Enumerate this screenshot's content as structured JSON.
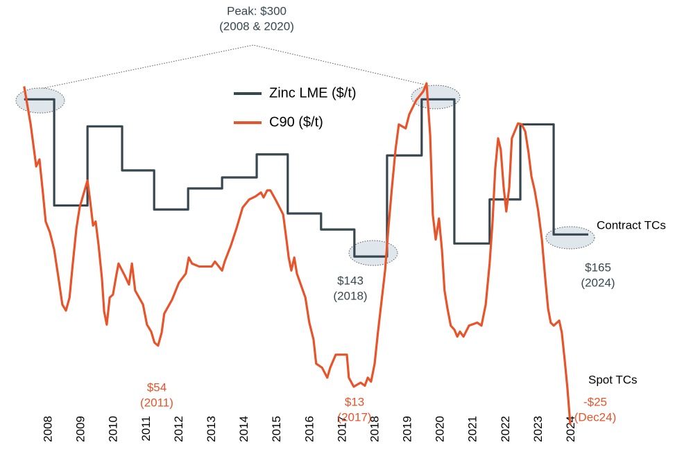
{
  "chart_data": {
    "type": "line",
    "xlim": [
      2007,
      2027.6
    ],
    "ylim": [
      -30,
      330
    ],
    "xticks": [
      2008,
      2009,
      2010,
      2011,
      2012,
      2013,
      2014,
      2015,
      2016,
      2017,
      2018,
      2019,
      2020,
      2021,
      2022,
      2023,
      2024
    ],
    "legend": "upper center",
    "series": [
      {
        "name": "Zinc LME ($/t)",
        "color": "#37474f",
        "step": "post",
        "x": [
          2007.25,
          2008.17,
          2009.19,
          2010.25,
          2011.23,
          2012.27,
          2013.31,
          2014.37,
          2015.32,
          2016.34,
          2017.36,
          2018.36,
          2019.42,
          2020.42,
          2021.5,
          2022.44,
          2023.46,
          2024.52
        ],
        "values": [
          300,
          194,
          273,
          229,
          190,
          211,
          222,
          245,
          186,
          170,
          143,
          244,
          300,
          156,
          200,
          275,
          165,
          165
        ]
      },
      {
        "name": "C90 ($/t)",
        "color": "#e8532a",
        "x": [
          2007.25,
          2007.45,
          2007.62,
          2007.72,
          2007.83,
          2007.91,
          2008.04,
          2008.17,
          2008.3,
          2008.42,
          2008.53,
          2008.64,
          2008.74,
          2008.85,
          2008.95,
          2009.19,
          2009.27,
          2009.36,
          2009.44,
          2009.53,
          2009.63,
          2009.7,
          2009.78,
          2009.87,
          2009.97,
          2010.06,
          2010.14,
          2010.33,
          2010.46,
          2010.55,
          2010.65,
          2010.89,
          2011.01,
          2011.14,
          2011.24,
          2011.35,
          2011.46,
          2011.54,
          2011.78,
          2011.99,
          2012.2,
          2012.29,
          2012.39,
          2012.61,
          2012.99,
          2013.09,
          2013.31,
          2013.39,
          2013.58,
          2013.75,
          2013.94,
          2014.14,
          2014.33,
          2014.5,
          2014.58,
          2014.69,
          2014.79,
          2014.96,
          2015.18,
          2015.28,
          2015.35,
          2015.43,
          2015.52,
          2015.6,
          2015.86,
          2015.98,
          2016.11,
          2016.19,
          2016.37,
          2016.53,
          2016.62,
          2016.79,
          2017.13,
          2017.19,
          2017.34,
          2017.55,
          2017.68,
          2017.77,
          2017.87,
          2017.98,
          2018.08,
          2018.19,
          2018.3,
          2018.4,
          2018.51,
          2018.62,
          2018.72,
          2018.93,
          2019.04,
          2019.25,
          2019.47,
          2019.57,
          2019.68,
          2019.76,
          2019.85,
          2019.95,
          2020.04,
          2020.12,
          2020.21,
          2020.31,
          2020.42,
          2020.51,
          2020.59,
          2020.7,
          2020.87,
          2021.12,
          2021.25,
          2021.38,
          2021.5,
          2021.59,
          2021.67,
          2021.76,
          2021.84,
          2021.93,
          2022.01,
          2022.1,
          2022.18,
          2022.37,
          2022.48,
          2022.59,
          2022.69,
          2022.78,
          2022.88,
          2022.99,
          2023.1,
          2023.2,
          2023.29,
          2023.37,
          2023.46,
          2023.63,
          2023.71,
          2023.8,
          2023.88,
          2023.97
        ],
        "values": [
          313,
          275,
          233,
          240,
          205,
          178,
          167,
          150,
          122,
          95,
          89,
          102,
          136,
          171,
          192,
          219,
          199,
          174,
          178,
          154,
          122,
          88,
          75,
          102,
          105,
          122,
          136,
          124,
          115,
          136,
          109,
          95,
          75,
          68,
          57,
          54,
          67,
          86,
          100,
          117,
          126,
          142,
          136,
          133,
          133,
          138,
          129,
          138,
          154,
          171,
          192,
          200,
          203,
          207,
          202,
          209,
          209,
          199,
          185,
          160,
          142,
          129,
          142,
          126,
          102,
          77,
          60,
          36,
          32,
          22,
          32,
          45,
          45,
          22,
          13,
          17,
          14,
          22,
          18,
          36,
          67,
          98,
          129,
          171,
          212,
          250,
          275,
          271,
          285,
          299,
          308,
          316,
          264,
          185,
          160,
          181,
          150,
          109,
          91,
          74,
          70,
          63,
          68,
          63,
          74,
          77,
          74,
          95,
          136,
          178,
          230,
          261,
          250,
          212,
          188,
          212,
          261,
          276,
          275,
          268,
          247,
          223,
          209,
          188,
          160,
          122,
          91,
          77,
          74,
          79,
          67,
          39,
          12,
          -25
        ]
      }
    ],
    "annotations": [
      {
        "lines": [
          "Peak: $300",
          "(2008 & 2020)"
        ],
        "color": "#37474f"
      },
      {
        "lines": [
          "$143",
          "(2018)"
        ],
        "color": "#37474f"
      },
      {
        "lines": [
          "$165",
          "(2024)"
        ],
        "color": "#37474f"
      },
      {
        "lines": [
          "Contract TCs"
        ],
        "color": "#000000"
      },
      {
        "lines": [
          "$54",
          "(2011)"
        ],
        "color": "#e8532a"
      },
      {
        "lines": [
          "$13",
          "(2017)"
        ],
        "color": "#e8532a"
      },
      {
        "lines": [
          "Spot TCs"
        ],
        "color": "#000000"
      },
      {
        "lines": [
          "-$25",
          "(Dec24)"
        ],
        "color": "#e8532a"
      }
    ]
  }
}
